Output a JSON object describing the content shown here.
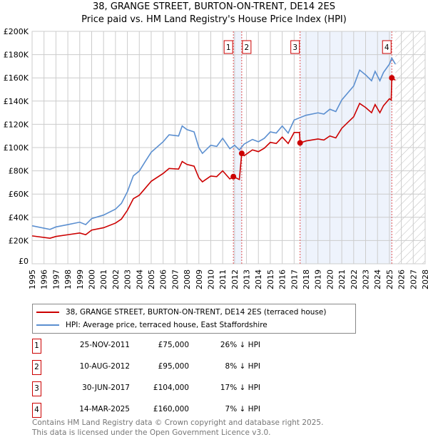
{
  "title": "38, GRANGE STREET, BURTON-ON-TRENT, DE14 2ES",
  "subtitle": "Price paid vs. HM Land Registry's House Price Index (HPI)",
  "chart_data": {
    "type": "line",
    "title": "38, GRANGE STREET, BURTON-ON-TRENT, DE14 2ES",
    "subtitle": "Price paid vs. HM Land Registry's House Price Index (HPI)",
    "xlim": [
      1995,
      2028
    ],
    "ylim": [
      0,
      200000
    ],
    "y_ticks": [
      0,
      20000,
      40000,
      60000,
      80000,
      100000,
      120000,
      140000,
      160000,
      180000,
      200000
    ],
    "y_tick_labels": [
      "£0",
      "£20K",
      "£40K",
      "£60K",
      "£80K",
      "£100K",
      "£120K",
      "£140K",
      "£160K",
      "£180K",
      "£200K"
    ],
    "x_ticks": [
      "1995",
      "1996",
      "1997",
      "1998",
      "1999",
      "2000",
      "2001",
      "2002",
      "2003",
      "2004",
      "2005",
      "2006",
      "2007",
      "2008",
      "2009",
      "2010",
      "2011",
      "2012",
      "2013",
      "2014",
      "2015",
      "2016",
      "2017",
      "2018",
      "2019",
      "2020",
      "2021",
      "2022",
      "2023",
      "2024",
      "2025",
      "2026",
      "2027",
      "2028"
    ],
    "grid": true,
    "forecast_hatch_from": 2025.5,
    "series": [
      {
        "name": "38, GRANGE STREET, BURTON-ON-TRENT, DE14 2ES (terraced house)",
        "color": "#cc0000",
        "points": [
          [
            1995,
            24
          ],
          [
            1996.5,
            22
          ],
          [
            1997,
            23.5
          ],
          [
            1998,
            25
          ],
          [
            1999,
            26.5
          ],
          [
            1999.5,
            25
          ],
          [
            2000,
            29
          ],
          [
            2001,
            31
          ],
          [
            2002,
            35
          ],
          [
            2002.5,
            38.5
          ],
          [
            2003,
            46
          ],
          [
            2003.5,
            56
          ],
          [
            2004,
            59
          ],
          [
            2004.5,
            65
          ],
          [
            2005,
            71
          ],
          [
            2006,
            77.7
          ],
          [
            2006.5,
            82
          ],
          [
            2007.3,
            81.5
          ],
          [
            2007.6,
            88
          ],
          [
            2008,
            85.5
          ],
          [
            2008.6,
            84
          ],
          [
            2009,
            74
          ],
          [
            2009.3,
            70.5
          ],
          [
            2010,
            75.5
          ],
          [
            2010.5,
            75
          ],
          [
            2011,
            80
          ],
          [
            2011.6,
            73
          ],
          [
            2011.9,
            75
          ],
          [
            2012.4,
            72.5
          ],
          [
            2012.6,
            95
          ],
          [
            2012.8,
            93
          ],
          [
            2013.5,
            98
          ],
          [
            2014,
            96.5
          ],
          [
            2014.5,
            99.5
          ],
          [
            2015,
            104.5
          ],
          [
            2015.5,
            103.5
          ],
          [
            2016,
            109
          ],
          [
            2016.5,
            103.5
          ],
          [
            2017,
            113
          ],
          [
            2017.45,
            113
          ],
          [
            2017.5,
            104
          ],
          [
            2018,
            105.7
          ],
          [
            2019,
            107.4
          ],
          [
            2019.5,
            106.5
          ],
          [
            2020,
            110
          ],
          [
            2020.5,
            108.3
          ],
          [
            2021,
            116.6
          ],
          [
            2021.5,
            121.6
          ],
          [
            2022,
            126.5
          ],
          [
            2022.5,
            138
          ],
          [
            2023,
            134.5
          ],
          [
            2023.5,
            130
          ],
          [
            2023.8,
            137
          ],
          [
            2024.2,
            130
          ],
          [
            2024.5,
            136
          ],
          [
            2025,
            142
          ],
          [
            2025.15,
            141
          ],
          [
            2025.2,
            160
          ],
          [
            2025.5,
            158
          ]
        ]
      },
      {
        "name": "HPI: Average price, terraced house, East Staffordshire",
        "color": "#5b8fd0",
        "points": [
          [
            1995,
            32.7
          ],
          [
            1996.5,
            29.6
          ],
          [
            1997,
            31.7
          ],
          [
            1998,
            33.7
          ],
          [
            1999,
            35.8
          ],
          [
            1999.5,
            33.7
          ],
          [
            2000,
            38.9
          ],
          [
            2001,
            41.9
          ],
          [
            2002,
            47
          ],
          [
            2002.5,
            52
          ],
          [
            2003,
            62
          ],
          [
            2003.5,
            75.7
          ],
          [
            2004,
            79.8
          ],
          [
            2004.5,
            88
          ],
          [
            2005,
            96
          ],
          [
            2006,
            105
          ],
          [
            2006.5,
            111
          ],
          [
            2007.3,
            110
          ],
          [
            2007.6,
            118.6
          ],
          [
            2008,
            115.5
          ],
          [
            2008.6,
            113.5
          ],
          [
            2009,
            100
          ],
          [
            2009.3,
            95
          ],
          [
            2010,
            102
          ],
          [
            2010.5,
            101
          ],
          [
            2011,
            108
          ],
          [
            2011.6,
            99
          ],
          [
            2012,
            102
          ],
          [
            2012.4,
            98
          ],
          [
            2012.8,
            103
          ],
          [
            2013.5,
            107
          ],
          [
            2014,
            105
          ],
          [
            2014.5,
            108
          ],
          [
            2015,
            113.5
          ],
          [
            2015.5,
            112.5
          ],
          [
            2016,
            118.6
          ],
          [
            2016.5,
            112.5
          ],
          [
            2017,
            123.7
          ],
          [
            2017.5,
            125.8
          ],
          [
            2018,
            127.8
          ],
          [
            2019,
            129.9
          ],
          [
            2019.5,
            128.8
          ],
          [
            2020,
            133
          ],
          [
            2020.5,
            131
          ],
          [
            2021,
            141
          ],
          [
            2021.5,
            147
          ],
          [
            2022,
            153
          ],
          [
            2022.5,
            166.7
          ],
          [
            2023,
            162.6
          ],
          [
            2023.5,
            157.5
          ],
          [
            2023.8,
            165.6
          ],
          [
            2024.2,
            157.5
          ],
          [
            2024.5,
            164.6
          ],
          [
            2025,
            171.8
          ],
          [
            2025.2,
            177
          ],
          [
            2025.5,
            171.8
          ]
        ]
      }
    ],
    "sales": [
      {
        "n": "1",
        "year": 2011.9,
        "value": 75
      },
      {
        "n": "2",
        "year": 2012.6,
        "value": 95
      },
      {
        "n": "3",
        "year": 2017.5,
        "value": 104
      },
      {
        "n": "4",
        "year": 2025.2,
        "value": 160
      }
    ]
  },
  "legend": [
    {
      "label": "38, GRANGE STREET, BURTON-ON-TRENT, DE14 2ES (terraced house)",
      "color": "#cc0000"
    },
    {
      "label": "HPI: Average price, terraced house, East Staffordshire",
      "color": "#5b8fd0"
    }
  ],
  "transactions": [
    {
      "n": "1",
      "date": "25-NOV-2011",
      "price": "£75,000",
      "pct": "26% ↓ HPI"
    },
    {
      "n": "2",
      "date": "10-AUG-2012",
      "price": "£95,000",
      "pct": "8% ↓ HPI"
    },
    {
      "n": "3",
      "date": "30-JUN-2017",
      "price": "£104,000",
      "pct": "17% ↓ HPI"
    },
    {
      "n": "4",
      "date": "14-MAR-2025",
      "price": "£160,000",
      "pct": "7% ↓ HPI"
    }
  ],
  "footer": {
    "line1": "Contains HM Land Registry data © Crown copyright and database right 2025.",
    "line2": "This data is licensed under the Open Government Licence v3.0."
  }
}
